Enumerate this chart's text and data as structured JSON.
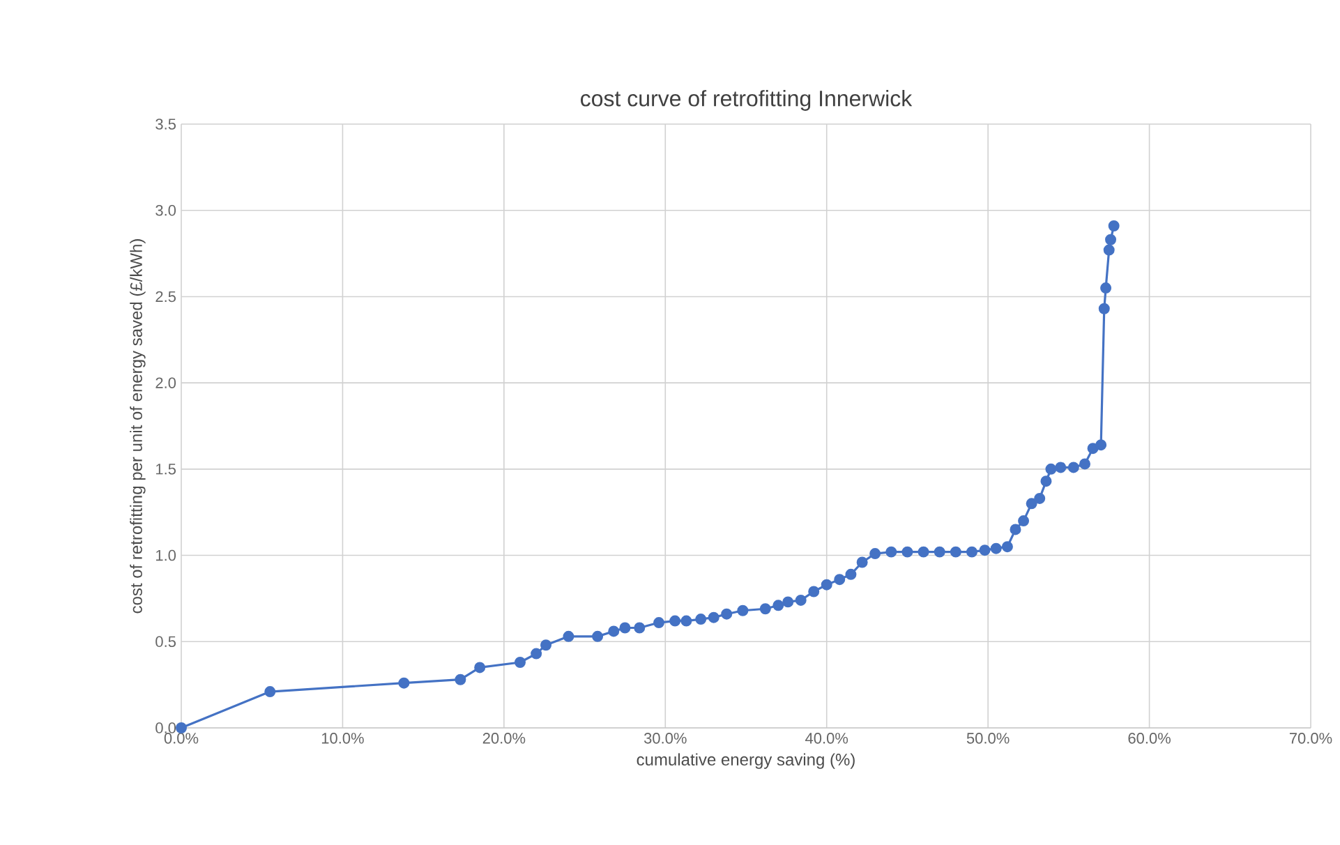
{
  "chart_data": {
    "type": "line",
    "title": "cost curve of retrofitting Innerwick",
    "xlabel": "cumulative energy saving (%)",
    "ylabel": "cost of retrofitting per unit of energy saved  (£/kWh)",
    "x": [
      0,
      5.5,
      13.8,
      17.3,
      18.5,
      21,
      22,
      22.6,
      24,
      25.8,
      26.8,
      27.5,
      28.4,
      29.6,
      30.6,
      31.3,
      32.2,
      33,
      33.8,
      34.8,
      36.2,
      37,
      37.6,
      38.4,
      39.2,
      40,
      40.8,
      41.5,
      42.2,
      43,
      44,
      45,
      46,
      47,
      48,
      49,
      49.8,
      50.5,
      51.2,
      51.7,
      52.2,
      52.7,
      53.2,
      53.6,
      53.9,
      54.5,
      55.3,
      56,
      56.5,
      57,
      57.2,
      57.3,
      57.5,
      57.6,
      57.8
    ],
    "series": [
      {
        "color": "#4472c4",
        "values": [
          0,
          0.21,
          0.26,
          0.28,
          0.35,
          0.38,
          0.43,
          0.48,
          0.53,
          0.53,
          0.56,
          0.58,
          0.58,
          0.61,
          0.62,
          0.62,
          0.63,
          0.64,
          0.66,
          0.68,
          0.69,
          0.71,
          0.73,
          0.74,
          0.79,
          0.83,
          0.86,
          0.89,
          0.96,
          1.01,
          1.02,
          1.02,
          1.02,
          1.02,
          1.02,
          1.02,
          1.03,
          1.04,
          1.05,
          1.15,
          1.2,
          1.3,
          1.33,
          1.43,
          1.5,
          1.51,
          1.51,
          1.53,
          1.62,
          1.64,
          2.43,
          2.55,
          2.77,
          2.83,
          2.91
        ]
      }
    ],
    "xlim": [
      0,
      70
    ],
    "ylim": [
      0,
      3.5
    ],
    "xticks": [
      {
        "value": 0,
        "label": "0.0%"
      },
      {
        "value": 10,
        "label": "10.0%"
      },
      {
        "value": 20,
        "label": "20.0%"
      },
      {
        "value": 30,
        "label": "30.0%"
      },
      {
        "value": 40,
        "label": "40.0%"
      },
      {
        "value": 50,
        "label": "50.0%"
      },
      {
        "value": 60,
        "label": "60.0%"
      },
      {
        "value": 70,
        "label": "70.0%"
      }
    ],
    "yticks": [
      {
        "value": 0,
        "label": "0.0"
      },
      {
        "value": 0.5,
        "label": "0.5"
      },
      {
        "value": 1,
        "label": "1.0"
      },
      {
        "value": 1.5,
        "label": "1.5"
      },
      {
        "value": 2,
        "label": "2.0"
      },
      {
        "value": 2.5,
        "label": "2.5"
      },
      {
        "value": 3,
        "label": "3.0"
      },
      {
        "value": 3.5,
        "label": "3.5"
      }
    ],
    "grid": true,
    "marker": "circle",
    "line_style": "solid"
  }
}
